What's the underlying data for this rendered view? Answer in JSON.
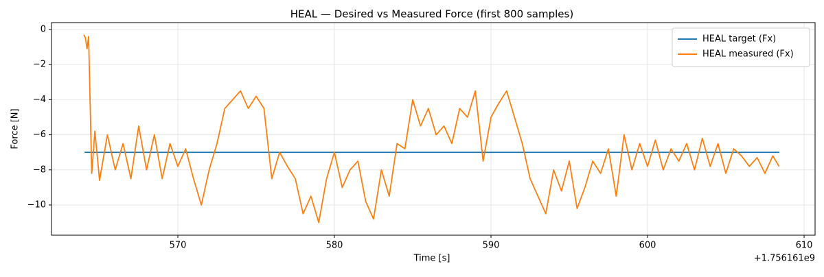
{
  "chart_data": {
    "type": "line",
    "title": "HEAL — Desired vs Measured Force (first 800 samples)",
    "x_label": "Time [s]",
    "y_label": "Force [N]",
    "x_offset_label": "+1.756161e9",
    "xlim": [
      561.93,
      610.7
    ],
    "ylim": [
      -11.72,
      0.39
    ],
    "xticks": [
      570,
      580,
      590,
      600,
      610
    ],
    "yticks": [
      {
        "value": -10,
        "label": "−10"
      },
      {
        "value": -8,
        "label": "−8"
      },
      {
        "value": -6,
        "label": "−6"
      },
      {
        "value": -4,
        "label": "−4"
      },
      {
        "value": -2,
        "label": "−2"
      },
      0
    ],
    "grid": true,
    "legend": "upper right",
    "series": [
      {
        "name": "HEAL target (Fx)",
        "color": "#1f77b4",
        "x": [
          564.04,
          608.42
        ],
        "values": [
          -7,
          -7
        ]
      },
      {
        "name": "HEAL measured (Fx)",
        "color": "#ff7f0e",
        "x": [
          564.0,
          564.1,
          564.2,
          564.3,
          564.5,
          564.7,
          565,
          565.5,
          566,
          566.5,
          567,
          567.5,
          568,
          568.5,
          569,
          569.5,
          570,
          570.5,
          571,
          571.5,
          572,
          572.5,
          573,
          573.5,
          574,
          574.5,
          575,
          575.5,
          576,
          576.5,
          577,
          577.5,
          578,
          578.5,
          579,
          579.5,
          580,
          580.5,
          581,
          581.5,
          582,
          582.5,
          583,
          583.5,
          584,
          584.5,
          585,
          585.5,
          586,
          586.5,
          587,
          587.5,
          588,
          588.5,
          589,
          589.5,
          590,
          590.5,
          591,
          591.5,
          592,
          592.5,
          593,
          593.5,
          594,
          594.5,
          595,
          595.5,
          596,
          596.5,
          597,
          597.5,
          598,
          598.5,
          599,
          599.5,
          600,
          600.5,
          601,
          601.5,
          602,
          602.5,
          603,
          603.5,
          604,
          604.5,
          605,
          605.5,
          606,
          606.5,
          607,
          607.5,
          608,
          608.4
        ],
        "values": [
          -0.3,
          -0.5,
          -1.1,
          -0.4,
          -8.2,
          -5.8,
          -8.6,
          -6,
          -8,
          -6.5,
          -8.5,
          -5.5,
          -8,
          -6,
          -8.5,
          -6.5,
          -7.8,
          -6.8,
          -8.5,
          -10,
          -8,
          -6.5,
          -4.5,
          -4,
          -3.5,
          -4.5,
          -3.8,
          -4.5,
          -8.5,
          -7,
          -7.8,
          -8.5,
          -10.5,
          -9.5,
          -11,
          -8.5,
          -7,
          -9,
          -8,
          -7.5,
          -9.8,
          -10.8,
          -8,
          -9.5,
          -6.5,
          -6.8,
          -4,
          -5.5,
          -4.5,
          -6,
          -5.5,
          -6.5,
          -4.5,
          -5,
          -3.5,
          -7.5,
          -5,
          -4.2,
          -3.5,
          -5,
          -6.5,
          -8.5,
          -9.5,
          -10.5,
          -8,
          -9.2,
          -7.5,
          -10.2,
          -9,
          -7.5,
          -8.2,
          -6.8,
          -9.5,
          -6,
          -8,
          -6.5,
          -7.8,
          -6.3,
          -8,
          -6.8,
          -7.5,
          -6.5,
          -8,
          -6.2,
          -7.8,
          -6.5,
          -8.2,
          -6.8,
          -7.2,
          -7.8,
          -7.3,
          -8.2,
          -7.2,
          -7.8
        ]
      }
    ]
  }
}
